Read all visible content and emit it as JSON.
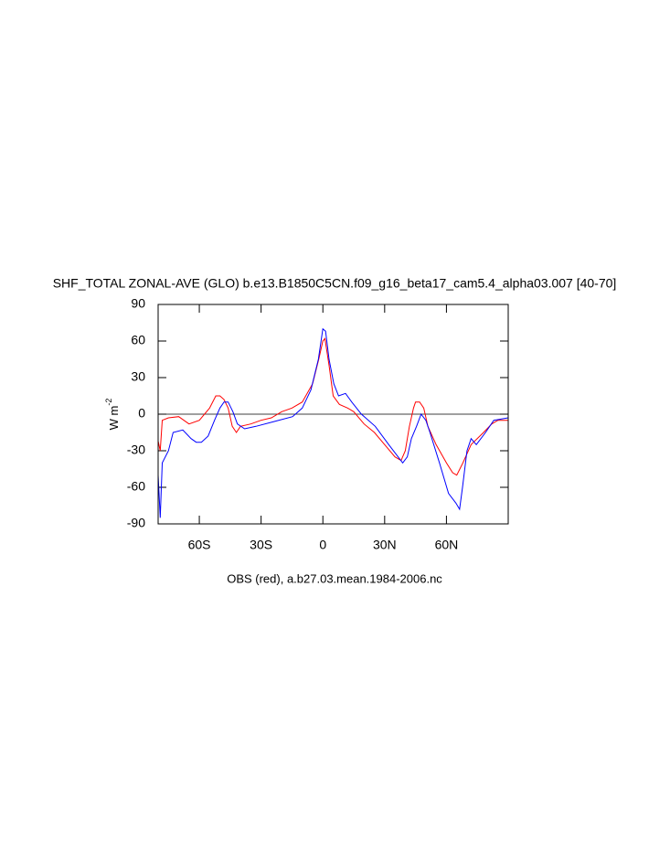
{
  "chart_data": {
    "type": "line",
    "title": "SHF_TOTAL ZONAL-AVE (GLO) b.e13.B1850C5CN.f09_g16_beta17_cam5.4_alpha03.007 [40-70]",
    "ylabel": {
      "text": "W m",
      "sup": "-2"
    },
    "footer": "OBS (red), a.b27.03.mean.1984-2006.nc",
    "xlim": [
      -80,
      90
    ],
    "ylim": [
      -90,
      90
    ],
    "xticks": [
      {
        "value": -60,
        "label": "60S"
      },
      {
        "value": -30,
        "label": "30S"
      },
      0,
      {
        "value": 30,
        "label": "30N"
      },
      {
        "value": 60,
        "label": "60N"
      }
    ],
    "yticks": [
      -90,
      -60,
      -30,
      0,
      30,
      60,
      90
    ],
    "ref_line": 0,
    "series": [
      {
        "color": "#ff0000",
        "x": [
          -80,
          -79,
          -78,
          -75,
          -70,
          -65,
          -60,
          -55,
          -52,
          -50,
          -48,
          -46,
          -44,
          -42,
          -40,
          -35,
          -30,
          -25,
          -20,
          -15,
          -10,
          -5,
          -2,
          0,
          1,
          3,
          5,
          8,
          12,
          15,
          20,
          25,
          30,
          35,
          38,
          40,
          42,
          44,
          45,
          47,
          49,
          51,
          55,
          60,
          63,
          65,
          68,
          72,
          78,
          82,
          85,
          90
        ],
        "values": [
          -22,
          -30,
          -5,
          -3,
          -2,
          -8,
          -5,
          5,
          15,
          15,
          12,
          5,
          -10,
          -15,
          -10,
          -8,
          -5,
          -3,
          2,
          5,
          10,
          25,
          45,
          60,
          62,
          40,
          15,
          8,
          5,
          2,
          -8,
          -15,
          -25,
          -35,
          -38,
          -30,
          -10,
          5,
          10,
          10,
          5,
          -10,
          -25,
          -40,
          -48,
          -50,
          -40,
          -25,
          -15,
          -8,
          -5,
          -5
        ]
      },
      {
        "color": "#0000ff",
        "x": [
          -80,
          -79,
          -78,
          -75,
          -72.7,
          -68,
          -64,
          -61.5,
          -59,
          -55.7,
          -52.6,
          -50,
          -48,
          -46,
          -43.7,
          -41.5,
          -38,
          -32.5,
          -23.6,
          -14.7,
          -10,
          -5.8,
          -2.2,
          0,
          1.3,
          3,
          5.3,
          7.6,
          11,
          14,
          18.7,
          25.4,
          32,
          38.8,
          41,
          43,
          45.5,
          47.7,
          50,
          52,
          56.6,
          61,
          64.6,
          66.4,
          67.8,
          70,
          72,
          74.5,
          79,
          83,
          90
        ],
        "values": [
          -50,
          -85,
          -40,
          -30,
          -15,
          -13,
          -20,
          -23,
          -23,
          -18,
          -5,
          5,
          10,
          10,
          2,
          -8,
          -12,
          -10,
          -6,
          -2,
          5,
          20,
          45,
          70,
          68,
          45,
          25,
          15,
          17,
          10,
          0,
          -10,
          -25,
          -40,
          -35,
          -20,
          -10,
          0,
          -5,
          -15,
          -40,
          -65,
          -73,
          -78,
          -60,
          -30,
          -20,
          -25,
          -15,
          -5,
          -3
        ]
      }
    ]
  }
}
